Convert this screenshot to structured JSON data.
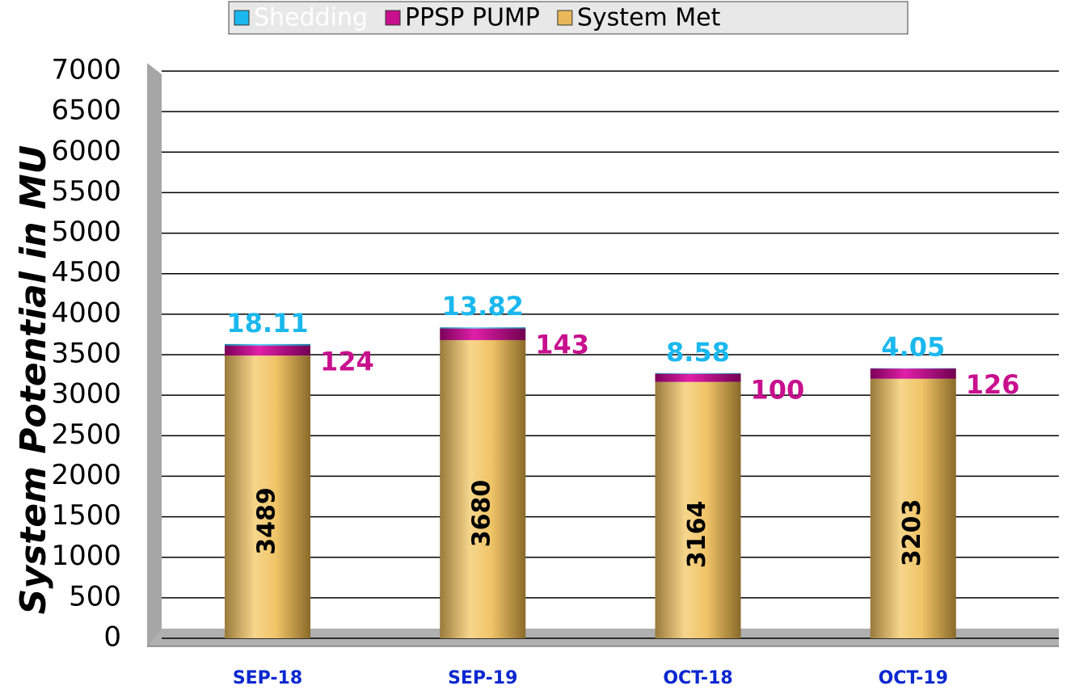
{
  "chart_data": {
    "type": "stacked_bar",
    "y_label": "System Potential in MU",
    "categories": [
      "SEP-18",
      "SEP-19",
      "OCT-18",
      "OCT-19"
    ],
    "series": [
      {
        "name": "System Met",
        "color": "#e8b85a",
        "values": [
          3489,
          3680,
          3164,
          3203
        ]
      },
      {
        "name": "PPSP PUMP",
        "color": "#c8108e",
        "values": [
          124,
          143,
          100,
          126
        ]
      },
      {
        "name": "Shedding",
        "color": "#1ab8ee",
        "values": [
          18.11,
          13.82,
          8.58,
          4.05
        ]
      }
    ],
    "legend_order": [
      2,
      1,
      0
    ],
    "ylim": [
      0,
      7000
    ],
    "yticks": [
      0,
      500,
      1000,
      1500,
      2000,
      2500,
      3000,
      3500,
      4000,
      4500,
      5000,
      5500,
      6000,
      6500,
      7000
    ],
    "grid": true
  }
}
